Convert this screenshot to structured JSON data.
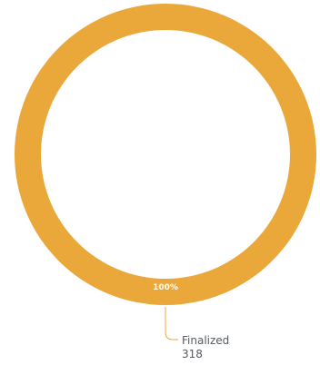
{
  "chart_data": {
    "type": "pie",
    "variant": "donut",
    "title": "",
    "slices": [
      {
        "label": "Finalized",
        "value": 318,
        "percent_label": "100%",
        "color": "#EAA73A"
      }
    ]
  }
}
